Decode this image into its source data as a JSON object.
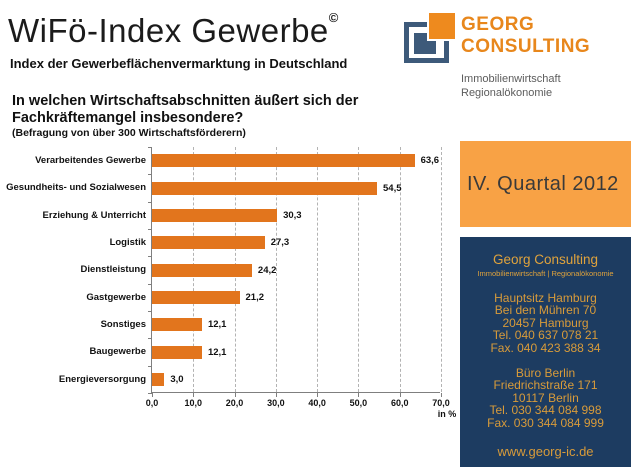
{
  "header": {
    "title": "WiFö-Index Gewerbe",
    "copyright": "©",
    "subtitle": "Index der Gewerbeflächenvermarktung in Deutschland",
    "logo": {
      "name_line1": "GEORG",
      "name_line2": "CONSULTING",
      "tagline_line1": "Immobilienwirtschaft",
      "tagline_line2": "Regionalökonomie",
      "navy": "#3D5A7A",
      "orange": "#EE8A1E"
    }
  },
  "question": {
    "line1": "In welchen Wirtschaftsabschnitten  äußert sich der",
    "line2": "Fachkräftemangel insbesondere?",
    "note": "(Befragung von über 300 Wirtschaftsförderern)"
  },
  "chart_data": {
    "type": "bar",
    "orientation": "horizontal",
    "categories": [
      "Verarbeitendes Gewerbe",
      "Gesundheits- und Sozialwesen",
      "Erziehung & Unterricht",
      "Logistik",
      "Dienstleistung",
      "Gastgewerbe",
      "Sonstiges",
      "Baugewerbe",
      "Energieversorgung"
    ],
    "values": [
      63.6,
      54.5,
      30.3,
      27.3,
      24.2,
      21.2,
      12.1,
      12.1,
      3.0
    ],
    "value_labels": [
      "63,6",
      "54,5",
      "30,3",
      "27,3",
      "24,2",
      "21,2",
      "12,1",
      "12,1",
      "3,0"
    ],
    "xlabel": "in %",
    "xlim": [
      0,
      70
    ],
    "xticks": [
      "0,0",
      "10,0",
      "20,0",
      "30,0",
      "40,0",
      "50,0",
      "60,0",
      "70,0"
    ],
    "grid": "vertical dashed gridlines every 10 units",
    "legend": "none",
    "bar_color": "#E2751D"
  },
  "quarter_box": {
    "label": "IV. Quartal 2012",
    "bg_color": "#F8A245"
  },
  "contact_box": {
    "bg_color": "#1D3C61",
    "text_color": "#D89B3A",
    "company": "Georg Consulting",
    "division": "Immobilienwirtschaft | Regionalökonomie",
    "hamburg_lines": [
      "Hauptsitz Hamburg",
      "Bei den Mühren 70",
      "20457 Hamburg",
      "Tel. 040 637 078 21",
      "Fax. 040 423 388 34"
    ],
    "berlin_lines": [
      "Büro Berlin",
      "Friedrichstraße 171",
      "10117 Berlin",
      "Tel. 030 344 084 998",
      "Fax. 030 344 084 999"
    ],
    "website": "www.georg-ic.de"
  }
}
